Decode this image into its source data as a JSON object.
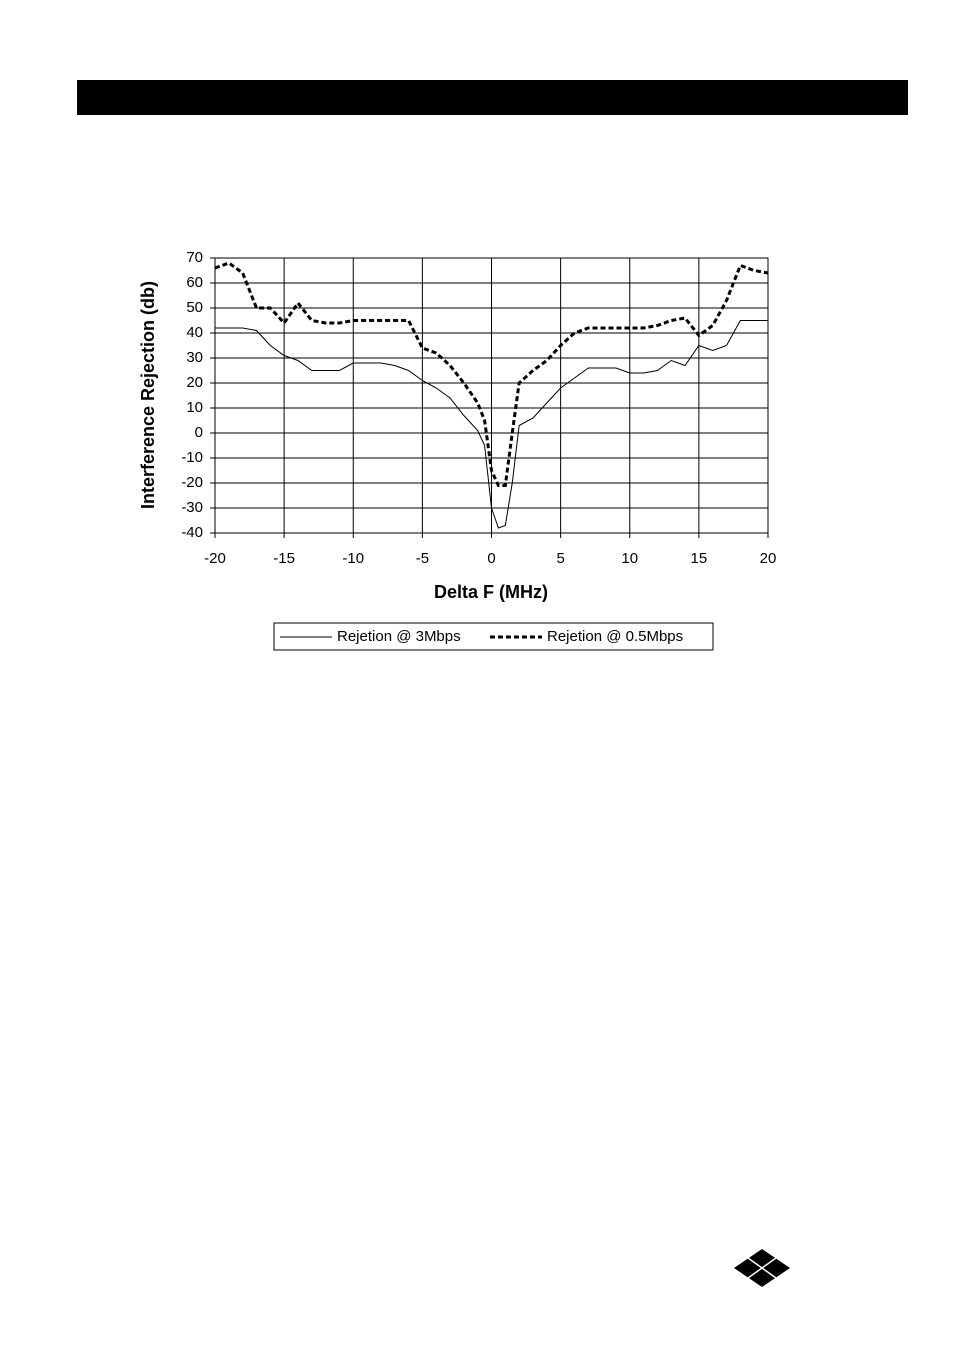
{
  "chart_data": {
    "type": "line",
    "xlabel": "Delta F (MHz)",
    "ylabel": "Interference Rejection (db)",
    "x": [
      -20,
      -19,
      -18,
      -17,
      -16,
      -15,
      -14,
      -13,
      -12,
      -11,
      -10,
      -9,
      -8,
      -7,
      -6,
      -5,
      -4,
      -3,
      -2,
      -1,
      -0.5,
      0,
      0.5,
      1,
      1.5,
      2,
      3,
      4,
      5,
      6,
      7,
      8,
      9,
      10,
      11,
      12,
      13,
      14,
      15,
      16,
      17,
      18,
      19,
      20
    ],
    "series": [
      {
        "name": "Rejetion @ 3Mbps",
        "color": "#000000",
        "dash": "solid",
        "values": [
          42,
          42,
          42,
          41,
          35,
          31,
          29,
          25,
          25,
          25,
          28,
          28,
          28,
          27,
          25,
          21,
          18,
          14,
          7,
          1,
          -5,
          -30,
          -38,
          -37,
          -20,
          3,
          6,
          12,
          18,
          22,
          26,
          26,
          26,
          24,
          24,
          25,
          29,
          27,
          35,
          33,
          35,
          45,
          45,
          45
        ]
      },
      {
        "name": "Rejetion @ 0.5Mbps",
        "color": "#000000",
        "dash": "dashed",
        "values": [
          66,
          68,
          64,
          50,
          50,
          44,
          52,
          45,
          44,
          44,
          45,
          45,
          45,
          45,
          45,
          34,
          32,
          27,
          20,
          12,
          5,
          -15,
          -21,
          -21,
          0,
          20,
          25,
          29,
          35,
          40,
          42,
          42,
          42,
          42,
          42,
          43,
          45,
          46,
          39,
          43,
          53,
          67,
          65,
          64
        ]
      }
    ],
    "xlim": [
      -20,
      20
    ],
    "xticks": [
      -20,
      -15,
      -10,
      -5,
      0,
      5,
      10,
      15,
      20
    ],
    "ylim": [
      -40,
      70
    ],
    "yticks": [
      -40,
      -30,
      -20,
      -10,
      0,
      10,
      20,
      30,
      40,
      50,
      60,
      70
    ],
    "grid": true,
    "legend": "bottom"
  }
}
